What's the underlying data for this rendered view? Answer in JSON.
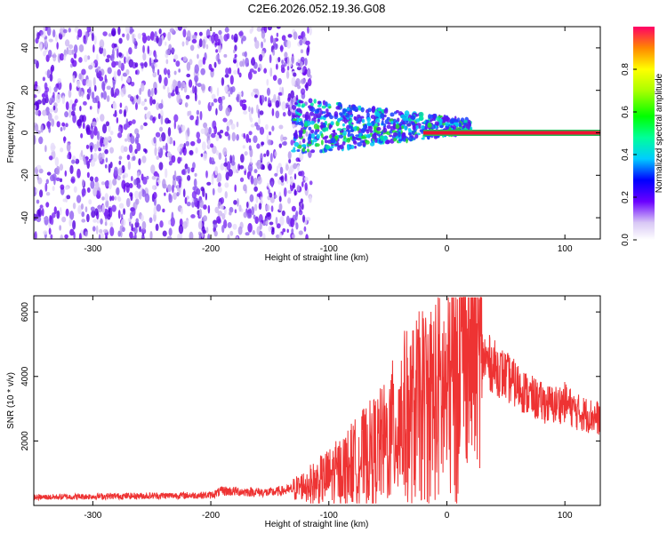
{
  "chart_data": [
    {
      "type": "heatmap",
      "title": "C2E6.2026.052.19.36.G08",
      "xlabel": "Height of straight line (km)",
      "ylabel": "Frequency (Hz)",
      "xlim": [
        -350,
        130
      ],
      "ylim": [
        -50,
        50
      ],
      "x_ticks": [
        "-300",
        "-200",
        "-100",
        "0",
        "100"
      ],
      "x_tick_values": [
        -300,
        -200,
        -100,
        0,
        100
      ],
      "y_ticks": [
        "40",
        "20",
        "0",
        "-20",
        "-40"
      ],
      "y_tick_values": [
        40,
        20,
        0,
        -20,
        -40
      ],
      "colorbar": {
        "label": "Normalized spectral amplitude",
        "range": [
          0,
          1
        ],
        "ticks": [
          "0.0",
          "0.2",
          "0.4",
          "0.6",
          "0.8"
        ],
        "tick_values": [
          0.0,
          0.2,
          0.4,
          0.6,
          0.8
        ]
      },
      "features": {
        "noise_region_x": [
          -350,
          -130
        ],
        "signal_line_frequency": 0,
        "signal_start_x": -20,
        "signal_end_x": 130
      }
    },
    {
      "type": "line",
      "xlabel": "Height of straight line (km)",
      "ylabel": "SNR (10 * v/v)",
      "xlim": [
        -350,
        130
      ],
      "ylim": [
        0,
        6500
      ],
      "x_ticks": [
        "-300",
        "-200",
        "-100",
        "0",
        "100"
      ],
      "x_tick_values": [
        -300,
        -200,
        -100,
        0,
        100
      ],
      "y_ticks": [
        "6000",
        "4000",
        "2000"
      ],
      "y_tick_values": [
        6000,
        4000,
        2000
      ],
      "color": "#ee3333",
      "series": [
        {
          "x": [
            -350,
            -300,
            -250,
            -200,
            -190,
            -150,
            -130,
            -110,
            -90,
            -70,
            -50,
            -40,
            -30,
            -20,
            -10,
            0,
            10,
            20,
            30,
            40,
            50,
            60,
            70,
            80,
            90,
            100,
            110,
            120,
            130
          ],
          "values": [
            250,
            280,
            300,
            320,
            450,
            400,
            500,
            800,
            1200,
            1700,
            2200,
            3000,
            3100,
            3500,
            3700,
            3800,
            5000,
            4700,
            4600,
            4300,
            4000,
            3700,
            3400,
            3200,
            3100,
            3200,
            2900,
            2800,
            2700
          ]
        }
      ]
    }
  ]
}
